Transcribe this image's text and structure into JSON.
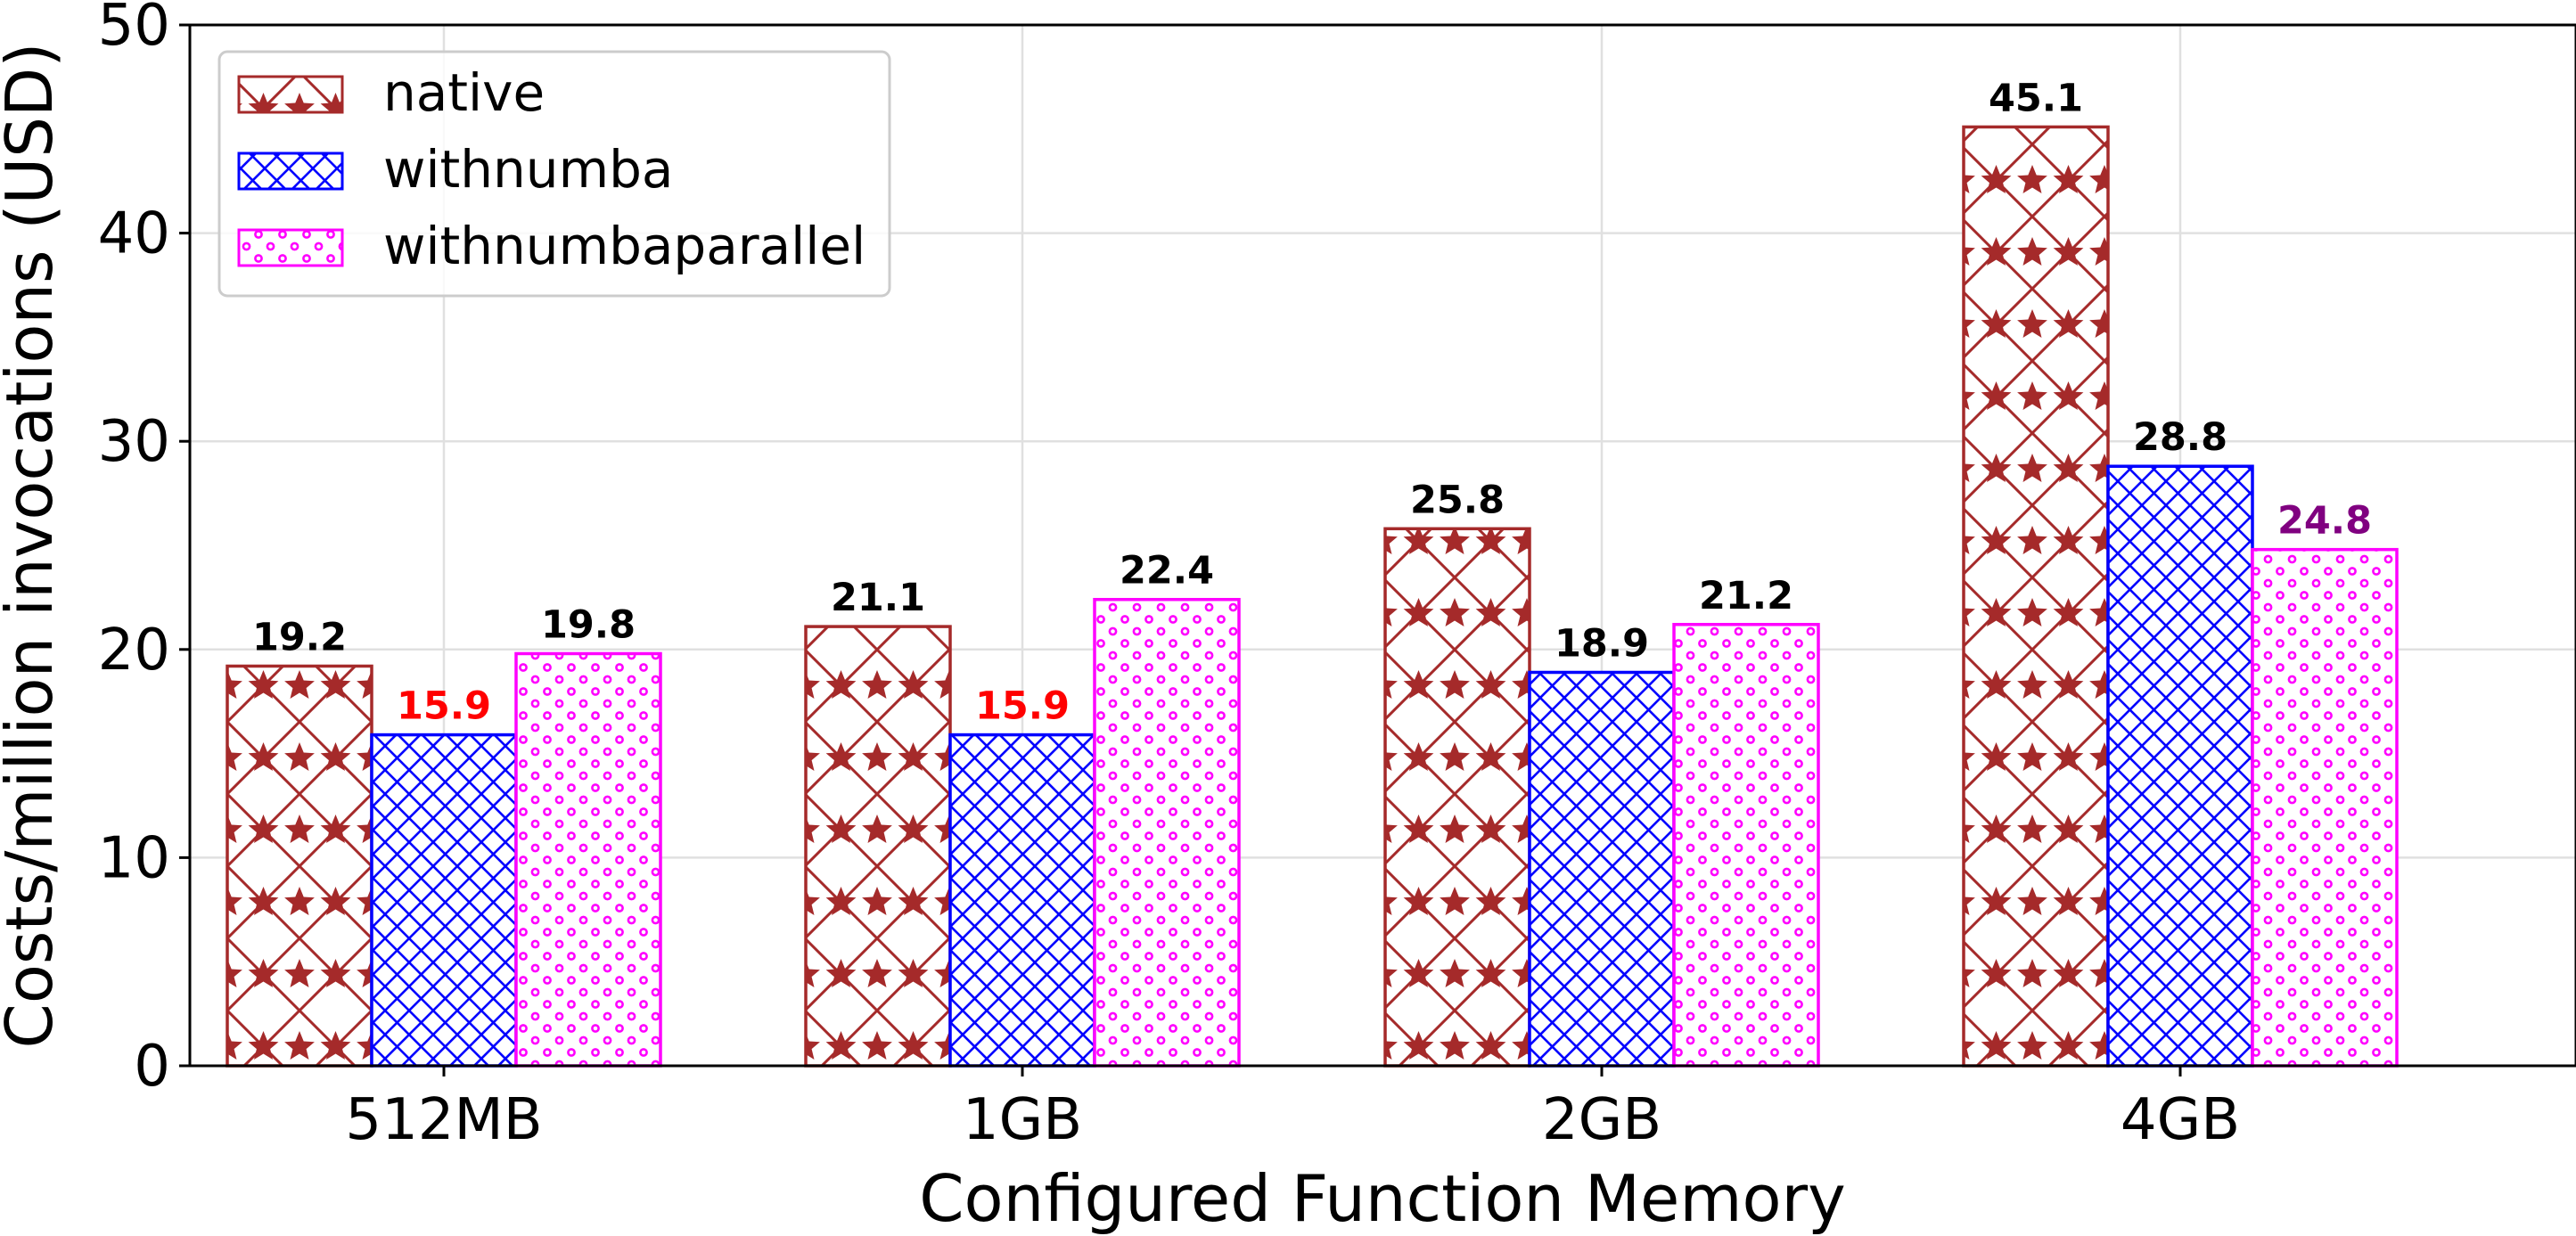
{
  "chart_data": {
    "type": "bar",
    "xlabel": "Configured Function Memory",
    "ylabel": "Costs/million invocations (USD)",
    "ylim": [
      0,
      50
    ],
    "yticks": [
      0,
      10,
      20,
      30,
      40,
      50
    ],
    "grid": true,
    "legend_position": "top-left",
    "categories": [
      "512MB",
      "1GB",
      "2GB",
      "4GB"
    ],
    "series": [
      {
        "name": "native",
        "values": [
          19.2,
          21.1,
          25.8,
          45.1
        ],
        "color": "#a52a2a",
        "pattern": "stars-diagonal"
      },
      {
        "name": "withnumba",
        "values": [
          15.9,
          15.9,
          18.9,
          28.8
        ],
        "color": "#0000ff",
        "pattern": "crosshatch"
      },
      {
        "name": "withnumbaparallel",
        "values": [
          19.8,
          22.4,
          21.2,
          24.8
        ],
        "color": "#ff00ff",
        "pattern": "circles"
      }
    ],
    "data_labels": [
      [
        "19.2",
        "21.1",
        "25.8",
        "45.1"
      ],
      [
        "15.9",
        "15.9",
        "18.9",
        "28.8"
      ],
      [
        "19.8",
        "22.4",
        "21.2",
        "24.8"
      ]
    ],
    "data_label_colors": [
      [
        "#000000",
        "#000000",
        "#000000",
        "#000000"
      ],
      [
        "#ff0000",
        "#ff0000",
        "#000000",
        "#000000"
      ],
      [
        "#000000",
        "#000000",
        "#000000",
        "#800080"
      ]
    ]
  }
}
